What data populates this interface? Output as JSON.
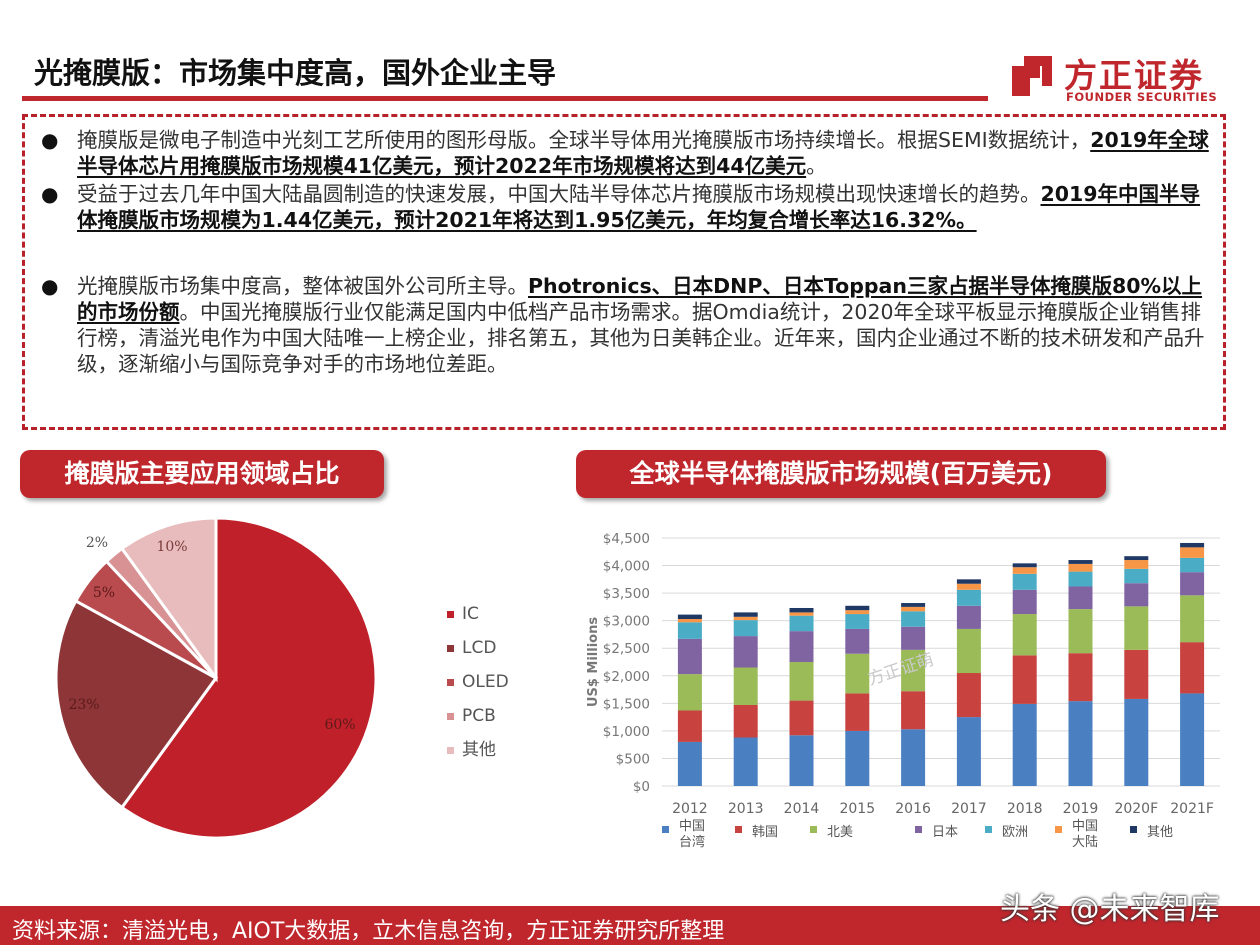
{
  "header": {
    "title": "光掩膜版：市场集中度高，国外企业主导",
    "logo_cn": "方正证券",
    "logo_en": "FOUNDER SECURITIES"
  },
  "bullets": [
    {
      "pre": "掩膜版是微电子制造中光刻工艺所使用的图形母版。全球半导体用光掩膜版市场持续增长。根据SEMI数据统计，",
      "bold": "2019年全球半导体芯片用掩膜版市场规模41亿美元，预计2022年市场规模将达到44亿美元",
      "post": "。"
    },
    {
      "pre": "受益于过去几年中国大陆晶圆制造的快速发展，中国大陆半导体芯片掩膜版市场规模出现快速增长的趋势。",
      "bold": "2019年中国半导体掩膜版市场规模为1.44亿美元，预计2021年将达到1.95亿美元，年均复合增长率达16.32%。",
      "post": ""
    },
    {
      "pre": "光掩膜版市场集中度高，整体被国外公司所主导。",
      "bold": "Photronics、日本DNP、日本Toppan三家占据半导体掩膜版80%以上的市场份额",
      "post": "。中国光掩膜版行业仅能满足国内中低档产品市场需求。据Omdia统计，2020年全球平板显示掩膜版企业销售排行榜，清溢光电作为中国大陆唯一上榜企业，排名第五，其他为日美韩企业。近年来，国内企业通过不断的技术研发和产品升级，逐渐缩小与国际竞争对手的市场地位差距。"
    }
  ],
  "pie_section": {
    "title": "掩膜版主要应用领域占比"
  },
  "bar_section": {
    "title": "全球半导体掩膜版市场规模(百万美元)"
  },
  "colors": {
    "brand_red": "#c0272d",
    "pie": [
      "#c0202a",
      "#8e3538",
      "#b94a4d",
      "#d99294",
      "#e8bcbc"
    ],
    "bars": [
      "#4a7fc1",
      "#c8423f",
      "#9bbb59",
      "#8064a2",
      "#4bacc6",
      "#f79646",
      "#1f3864"
    ]
  },
  "chart_data": [
    {
      "type": "pie",
      "labels": [
        "IC",
        "LCD",
        "OLED",
        "PCB",
        "其他"
      ],
      "values": [
        60,
        23,
        5,
        2,
        10
      ],
      "data_labels": [
        "60%",
        "23%",
        "5%",
        "2%",
        "10%"
      ],
      "legend_position": "right"
    },
    {
      "type": "bar",
      "stacked": true,
      "ylabel": "US$ Millions",
      "categories": [
        "2012",
        "2013",
        "2014",
        "2015",
        "2016",
        "2017",
        "2018",
        "2019",
        "2020F",
        "2021F"
      ],
      "ylim": [
        0,
        4500
      ],
      "yticks": [
        0,
        500,
        1000,
        1500,
        2000,
        2500,
        3000,
        3500,
        4000,
        4500
      ],
      "ytick_labels": [
        "$0",
        "$500",
        "$1,000",
        "$1,500",
        "$2,000",
        "$2,500",
        "$3,000",
        "$3,500",
        "$4,000",
        "$4,500"
      ],
      "grid": true,
      "legend_position": "bottom",
      "series": [
        {
          "name": "中国台湾",
          "values": [
            800,
            880,
            920,
            1000,
            1030,
            1250,
            1490,
            1540,
            1580,
            1680
          ]
        },
        {
          "name": "韩国",
          "values": [
            570,
            590,
            630,
            680,
            690,
            800,
            880,
            870,
            890,
            930
          ]
        },
        {
          "name": "北美",
          "values": [
            660,
            680,
            700,
            720,
            750,
            800,
            750,
            800,
            790,
            850
          ]
        },
        {
          "name": "日本",
          "values": [
            640,
            570,
            560,
            450,
            420,
            420,
            440,
            410,
            420,
            420
          ]
        },
        {
          "name": "欧洲",
          "values": [
            300,
            290,
            280,
            270,
            280,
            290,
            290,
            270,
            260,
            260
          ]
        },
        {
          "name": "中国大陆",
          "values": [
            60,
            60,
            60,
            70,
            80,
            110,
            120,
            140,
            160,
            190
          ]
        },
        {
          "name": "其他",
          "values": [
            80,
            80,
            80,
            80,
            70,
            80,
            70,
            70,
            70,
            80
          ]
        }
      ]
    }
  ],
  "legend_bar": {
    "items": [
      {
        "lines": [
          "中国",
          "台湾"
        ]
      },
      {
        "lines": [
          "韩国"
        ]
      },
      {
        "lines": [
          "北美"
        ]
      },
      {
        "lines": [
          "日本"
        ]
      },
      {
        "lines": [
          "欧洲"
        ]
      },
      {
        "lines": [
          "中国",
          "大陆"
        ]
      },
      {
        "lines": [
          "其他"
        ]
      }
    ]
  },
  "watermark": "方正证萌",
  "footer": {
    "source": "资料来源：清溢光电，AIOT大数据，立木信息咨询，方正证券研究所整理",
    "watermark": "头条 @未来智库"
  }
}
